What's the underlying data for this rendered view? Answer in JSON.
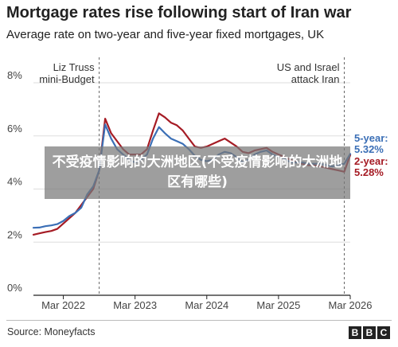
{
  "chart_data": {
    "type": "line",
    "title": "Mortgage rates rise following start of Iran war",
    "subtitle": "Average rate on two-year and five-year fixed mortgages, UK",
    "ylim": [
      0,
      8
    ],
    "yticks": [
      0,
      2,
      4,
      6,
      8
    ],
    "ytick_labels": [
      "0%",
      "2%",
      "4%",
      "6%",
      "8%"
    ],
    "xlim": [
      "2021-10",
      "2026-03"
    ],
    "xticks": [
      "2022-03",
      "2023-03",
      "2024-03",
      "2025-03",
      "2026-03"
    ],
    "xtick_labels": [
      "Mar 2022",
      "Mar 2023",
      "Mar 2024",
      "Mar 2025",
      "Mar 2026"
    ],
    "grid": true,
    "annotations": [
      {
        "date": "2022-09",
        "text": [
          "Liz Truss",
          "mini-Budget"
        ],
        "align": "right"
      },
      {
        "date": "2026-02",
        "text": [
          "US and Israel",
          "attack Iran"
        ],
        "align": "right"
      }
    ],
    "series": [
      {
        "name": "5-year:",
        "end_label": "5.32%",
        "color": "#3b6fb6",
        "points": [
          [
            "2021-10",
            2.54
          ],
          [
            "2021-11",
            2.55
          ],
          [
            "2021-12",
            2.6
          ],
          [
            "2022-01",
            2.63
          ],
          [
            "2022-02",
            2.68
          ],
          [
            "2022-03",
            2.8
          ],
          [
            "2022-04",
            2.98
          ],
          [
            "2022-05",
            3.1
          ],
          [
            "2022-06",
            3.3
          ],
          [
            "2022-07",
            3.8
          ],
          [
            "2022-08",
            4.1
          ],
          [
            "2022-09",
            4.7
          ],
          [
            "2022-10",
            6.43
          ],
          [
            "2022-11",
            5.9
          ],
          [
            "2022-12",
            5.5
          ],
          [
            "2023-01",
            5.3
          ],
          [
            "2023-02",
            5.1
          ],
          [
            "2023-03",
            5.0
          ],
          [
            "2023-04",
            5.1
          ],
          [
            "2023-05",
            5.3
          ],
          [
            "2023-06",
            5.9
          ],
          [
            "2023-07",
            6.33
          ],
          [
            "2023-08",
            6.1
          ],
          [
            "2023-09",
            5.9
          ],
          [
            "2023-10",
            5.8
          ],
          [
            "2023-11",
            5.7
          ],
          [
            "2023-12",
            5.5
          ],
          [
            "2024-01",
            5.25
          ],
          [
            "2024-02",
            5.1
          ],
          [
            "2024-03",
            5.05
          ],
          [
            "2024-04",
            5.1
          ],
          [
            "2024-05",
            5.3
          ],
          [
            "2024-06",
            5.4
          ],
          [
            "2024-07",
            5.35
          ],
          [
            "2024-08",
            5.2
          ],
          [
            "2024-09",
            5.0
          ],
          [
            "2024-10",
            5.1
          ],
          [
            "2024-11",
            5.3
          ],
          [
            "2024-12",
            5.4
          ],
          [
            "2025-01",
            5.45
          ],
          [
            "2025-02",
            5.3
          ],
          [
            "2025-03",
            5.2
          ],
          [
            "2025-04",
            5.15
          ],
          [
            "2025-05",
            5.0
          ],
          [
            "2025-06",
            5.0
          ],
          [
            "2025-07",
            5.0
          ],
          [
            "2025-08",
            4.95
          ],
          [
            "2025-09",
            4.95
          ],
          [
            "2025-10",
            4.95
          ],
          [
            "2025-11",
            4.9
          ],
          [
            "2025-12",
            4.85
          ],
          [
            "2026-01",
            4.9
          ],
          [
            "2026-02",
            4.95
          ],
          [
            "2026-03",
            5.32
          ]
        ]
      },
      {
        "name": "2-year:",
        "end_label": "5.28%",
        "color": "#a51b24",
        "points": [
          [
            "2021-10",
            2.28
          ],
          [
            "2021-11",
            2.33
          ],
          [
            "2021-12",
            2.38
          ],
          [
            "2022-01",
            2.42
          ],
          [
            "2022-02",
            2.5
          ],
          [
            "2022-03",
            2.7
          ],
          [
            "2022-04",
            2.9
          ],
          [
            "2022-05",
            3.1
          ],
          [
            "2022-06",
            3.4
          ],
          [
            "2022-07",
            3.7
          ],
          [
            "2022-08",
            4.0
          ],
          [
            "2022-09",
            4.7
          ],
          [
            "2022-10",
            6.65
          ],
          [
            "2022-11",
            6.1
          ],
          [
            "2022-12",
            5.8
          ],
          [
            "2023-01",
            5.5
          ],
          [
            "2023-02",
            5.3
          ],
          [
            "2023-03",
            5.3
          ],
          [
            "2023-04",
            5.3
          ],
          [
            "2023-05",
            5.5
          ],
          [
            "2023-06",
            6.2
          ],
          [
            "2023-07",
            6.85
          ],
          [
            "2023-08",
            6.7
          ],
          [
            "2023-09",
            6.5
          ],
          [
            "2023-10",
            6.4
          ],
          [
            "2023-11",
            6.2
          ],
          [
            "2023-12",
            5.9
          ],
          [
            "2024-01",
            5.6
          ],
          [
            "2024-02",
            5.55
          ],
          [
            "2024-03",
            5.6
          ],
          [
            "2024-04",
            5.7
          ],
          [
            "2024-05",
            5.8
          ],
          [
            "2024-06",
            5.9
          ],
          [
            "2024-07",
            5.75
          ],
          [
            "2024-08",
            5.6
          ],
          [
            "2024-09",
            5.4
          ],
          [
            "2024-10",
            5.35
          ],
          [
            "2024-11",
            5.45
          ],
          [
            "2024-12",
            5.5
          ],
          [
            "2025-01",
            5.55
          ],
          [
            "2025-02",
            5.4
          ],
          [
            "2025-03",
            5.3
          ],
          [
            "2025-04",
            5.2
          ],
          [
            "2025-05",
            5.1
          ],
          [
            "2025-06",
            5.0
          ],
          [
            "2025-07",
            4.95
          ],
          [
            "2025-08",
            4.9
          ],
          [
            "2025-09",
            4.9
          ],
          [
            "2025-10",
            4.85
          ],
          [
            "2025-11",
            4.8
          ],
          [
            "2025-12",
            4.75
          ],
          [
            "2026-01",
            4.7
          ],
          [
            "2026-02",
            4.65
          ],
          [
            "2026-03",
            5.28
          ]
        ]
      }
    ]
  },
  "source": "Source: Moneyfacts",
  "logo": [
    "B",
    "B",
    "C"
  ],
  "overlay_text": "不受疫情影响的大洲地区(不受疫情影响的大洲地区有哪些)",
  "colors": {
    "grid": "#dddddd",
    "axis": "#222222",
    "dashed": "#666666"
  }
}
